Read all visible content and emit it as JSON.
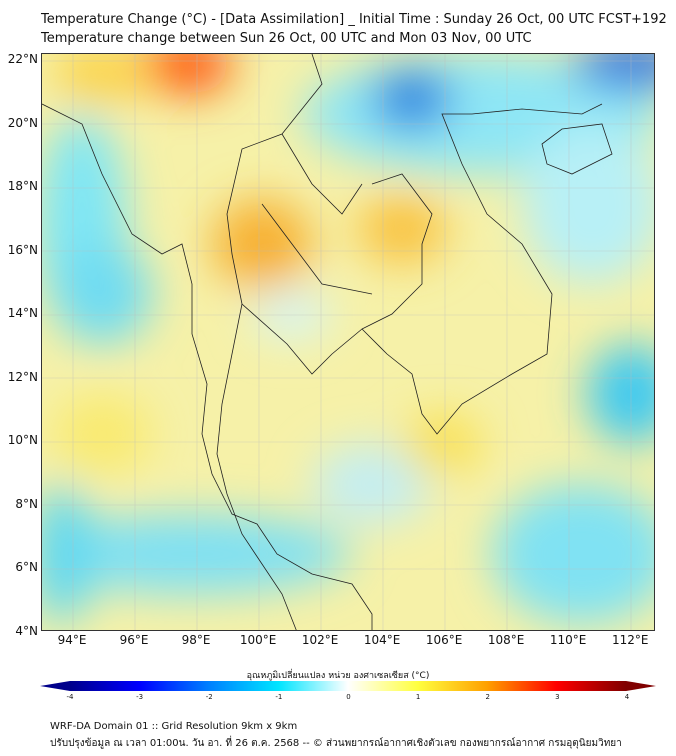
{
  "header": {
    "title": "Temperature Change (°C) - [Data Assimilation] _ Initial Time : Sunday 26 Oct, 00 UTC FCST+192",
    "subtitle": "Temperature change between Sun 26 Oct, 00 UTC and Mon 03 Nov, 00 UTC"
  },
  "map": {
    "lat_labels": [
      "22°N",
      "20°N",
      "18°N",
      "16°N",
      "14°N",
      "12°N",
      "10°N",
      "8°N",
      "6°N",
      "4°N"
    ],
    "lat_values": [
      22,
      20,
      18,
      16,
      14,
      12,
      10,
      8,
      6,
      4
    ],
    "lon_labels": [
      "94°E",
      "96°E",
      "98°E",
      "100°E",
      "102°E",
      "104°E",
      "106°E",
      "108°E",
      "110°E",
      "112°E"
    ],
    "lon_values": [
      94,
      96,
      98,
      100,
      102,
      104,
      106,
      108,
      110,
      112
    ],
    "extent": {
      "lon": [
        93,
        112.8
      ],
      "lat": [
        4,
        22.2
      ]
    }
  },
  "colorbar": {
    "title": "อุณหภูมิเปลี่ยนแปลง หน่วย องศาเซลเซียส (°C)",
    "ticks": [
      "-4",
      "-3",
      "-2",
      "-1",
      "0",
      "1",
      "2",
      "3",
      "4"
    ],
    "range": [
      -4,
      4
    ],
    "colors": [
      "#00008b",
      "#0000ff",
      "#0080ff",
      "#00e5ff",
      "#ffffff",
      "#ffff40",
      "#ffa000",
      "#ff0000",
      "#800000"
    ]
  },
  "footer": {
    "line1": "WRF-DA Domain 01 :: Grid Resolution 9km x 9km",
    "line2": "ปรับปรุงข้อมูล ณ เวลา 01:00น. วัน อา. ที่ 26 ต.ค. 2568 -- © ส่วนพยากรณ์อากาศเชิงตัวเลข กองพยากรณ์อากาศ กรมอุตุนิยมวิทยา"
  }
}
